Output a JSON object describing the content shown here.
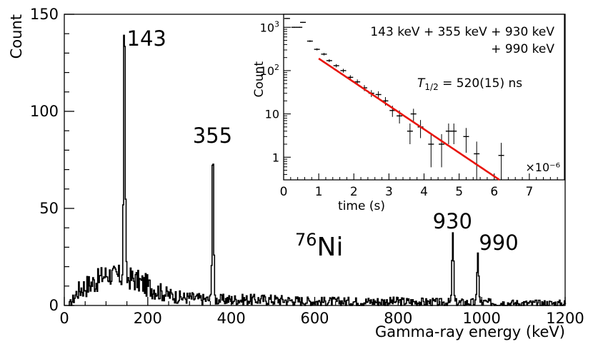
{
  "chart_data": [
    {
      "type": "histogram",
      "title": "",
      "xlabel": "Gamma-ray energy (keV)",
      "ylabel": "Count",
      "xlim": [
        0,
        1200
      ],
      "ylim": [
        0,
        150
      ],
      "x_ticks": [
        0,
        200,
        400,
        600,
        800,
        1000,
        1200
      ],
      "y_ticks": [
        0,
        50,
        100,
        150
      ],
      "grid": false,
      "isotope": {
        "mass": "76",
        "symbol": "Ni"
      },
      "peaks": [
        {
          "energy": 143,
          "count": 143,
          "label": "143"
        },
        {
          "energy": 355,
          "count": 82,
          "label": "355"
        },
        {
          "energy": 930,
          "count": 37,
          "label": "930"
        },
        {
          "energy": 990,
          "count": 27,
          "label": "990"
        }
      ],
      "background": [
        {
          "x": 10,
          "y": 0
        },
        {
          "x": 20,
          "y": 3
        },
        {
          "x": 30,
          "y": 7
        },
        {
          "x": 40,
          "y": 9
        },
        {
          "x": 50,
          "y": 10
        },
        {
          "x": 60,
          "y": 11
        },
        {
          "x": 70,
          "y": 12
        },
        {
          "x": 80,
          "y": 13
        },
        {
          "x": 90,
          "y": 15
        },
        {
          "x": 100,
          "y": 16
        },
        {
          "x": 110,
          "y": 16
        },
        {
          "x": 120,
          "y": 15
        },
        {
          "x": 130,
          "y": 15
        },
        {
          "x": 150,
          "y": 14
        },
        {
          "x": 160,
          "y": 14
        },
        {
          "x": 180,
          "y": 12
        },
        {
          "x": 200,
          "y": 10
        },
        {
          "x": 220,
          "y": 8
        },
        {
          "x": 240,
          "y": 6
        },
        {
          "x": 260,
          "y": 5
        },
        {
          "x": 280,
          "y": 4
        },
        {
          "x": 300,
          "y": 4
        },
        {
          "x": 340,
          "y": 3
        },
        {
          "x": 400,
          "y": 3
        },
        {
          "x": 500,
          "y": 3
        },
        {
          "x": 600,
          "y": 2
        },
        {
          "x": 700,
          "y": 2
        },
        {
          "x": 800,
          "y": 2
        },
        {
          "x": 900,
          "y": 1.5
        },
        {
          "x": 1000,
          "y": 1.5
        },
        {
          "x": 1100,
          "y": 1
        },
        {
          "x": 1200,
          "y": 1
        }
      ]
    },
    {
      "type": "scatter",
      "role": "inset",
      "xlabel": "time (s)",
      "ylabel": "Count",
      "x_scale_label": "×10⁻⁶",
      "xlim": [
        0,
        8
      ],
      "ylim": [
        0.3,
        2000
      ],
      "yscale": "log",
      "x_ticks": [
        0,
        1,
        2,
        3,
        4,
        5,
        6,
        7
      ],
      "y_ticks": [
        {
          "value": 1,
          "label": "1"
        },
        {
          "value": 10,
          "label": "10"
        },
        {
          "value": 100,
          "label": "10",
          "exp": "2"
        },
        {
          "value": 1000,
          "label": "10",
          "exp": "3"
        }
      ],
      "annotation_line1": "143 keV + 355 keV + 930 keV",
      "annotation_line2": "+ 990 keV",
      "half_life": {
        "symbol": "T",
        "sub": "1/2",
        "text": " = 520(15) ns"
      },
      "fit": {
        "color": "#e8140c",
        "t_start": 1.0,
        "t_end": 6.15,
        "count_start": 190,
        "count_end": 0.3
      },
      "points": [
        {
          "x": 0.1,
          "y": 1600
        },
        {
          "x": 0.3,
          "y": 1000
        },
        {
          "x": 0.45,
          "y": 1000
        },
        {
          "x": 0.55,
          "y": 1300
        },
        {
          "x": 0.75,
          "y": 480
        },
        {
          "x": 0.95,
          "y": 310
        },
        {
          "x": 1.15,
          "y": 240
        },
        {
          "x": 1.3,
          "y": 170
        },
        {
          "x": 1.5,
          "y": 130
        },
        {
          "x": 1.7,
          "y": 100
        },
        {
          "x": 1.9,
          "y": 70
        },
        {
          "x": 2.1,
          "y": 55
        },
        {
          "x": 2.3,
          "y": 40
        },
        {
          "x": 2.5,
          "y": 30
        },
        {
          "x": 2.7,
          "y": 28
        },
        {
          "x": 2.9,
          "y": 20
        },
        {
          "x": 3.1,
          "y": 12
        },
        {
          "x": 3.3,
          "y": 9
        },
        {
          "x": 3.6,
          "y": 4
        },
        {
          "x": 3.7,
          "y": 10
        },
        {
          "x": 3.9,
          "y": 5
        },
        {
          "x": 4.2,
          "y": 2
        },
        {
          "x": 4.5,
          "y": 2
        },
        {
          "x": 4.7,
          "y": 4
        },
        {
          "x": 4.85,
          "y": 4
        },
        {
          "x": 5.2,
          "y": 3
        },
        {
          "x": 5.5,
          "y": 1.2
        },
        {
          "x": 6.2,
          "y": 1.1
        }
      ]
    }
  ]
}
